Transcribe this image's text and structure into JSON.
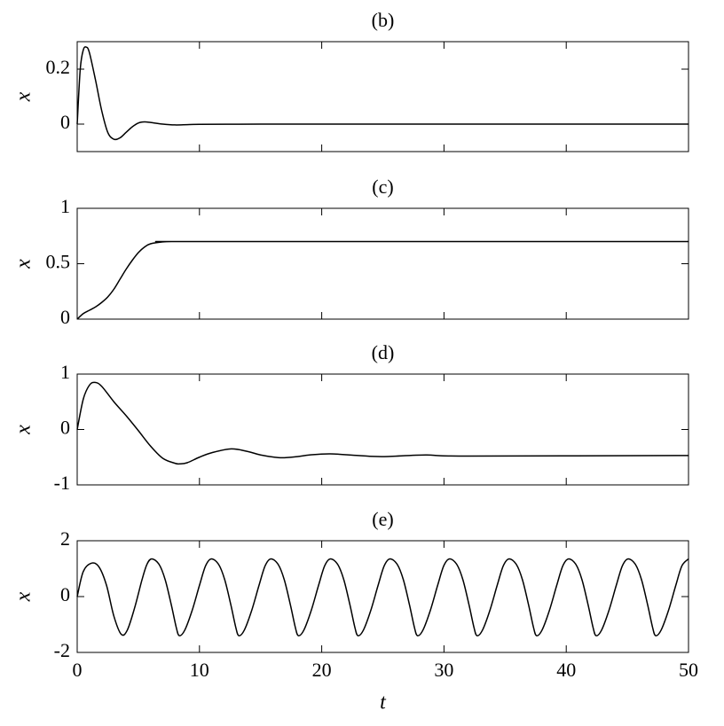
{
  "chart_data": [
    {
      "type": "line",
      "title": "(b)",
      "ylabel": "x",
      "color": "#000000",
      "xlim": [
        0,
        50
      ],
      "ylim": [
        -0.1,
        0.3
      ],
      "yticks": [
        0,
        0.2
      ],
      "x": [
        0,
        0.25,
        0.5,
        0.75,
        1,
        1.5,
        2,
        2.5,
        3,
        3.5,
        4,
        4.5,
        5,
        5.5,
        6,
        7,
        8,
        9,
        10,
        15,
        20,
        30,
        40,
        50
      ],
      "values": [
        0,
        0.2,
        0.27,
        0.28,
        0.26,
        0.16,
        0.05,
        -0.03,
        -0.055,
        -0.05,
        -0.03,
        -0.01,
        0.004,
        0.008,
        0.006,
        0,
        -0.003,
        -0.002,
        -0.001,
        0,
        0,
        0,
        0,
        0
      ]
    },
    {
      "type": "line",
      "title": "(c)",
      "ylabel": "x",
      "color": "#000000",
      "xlim": [
        0,
        50
      ],
      "ylim": [
        0,
        1
      ],
      "yticks": [
        0,
        0.5,
        1
      ],
      "x": [
        0,
        0.5,
        1,
        1.5,
        2,
        2.5,
        3,
        3.5,
        4,
        4.5,
        5,
        5.5,
        6,
        7,
        8,
        10,
        50
      ],
      "values": [
        0,
        0.05,
        0.08,
        0.11,
        0.15,
        0.2,
        0.27,
        0.36,
        0.45,
        0.53,
        0.6,
        0.65,
        0.68,
        0.697,
        0.7,
        0.7,
        0.7
      ]
    },
    {
      "type": "line",
      "title": "(d)",
      "ylabel": "x",
      "color": "#000000",
      "xlim": [
        0,
        50
      ],
      "ylim": [
        -1,
        1
      ],
      "yticks": [
        -1,
        0,
        1
      ],
      "x": [
        0,
        0.5,
        1,
        1.45,
        2,
        3,
        4,
        5,
        6,
        7,
        8,
        8.4,
        9,
        10,
        11,
        12.6,
        14,
        15,
        16.6,
        18,
        19,
        20.7,
        23,
        25,
        28.5,
        32,
        50
      ],
      "values": [
        0,
        0.55,
        0.8,
        0.85,
        0.78,
        0.5,
        0.25,
        -0.02,
        -0.3,
        -0.52,
        -0.61,
        -0.62,
        -0.6,
        -0.5,
        -0.42,
        -0.35,
        -0.4,
        -0.46,
        -0.51,
        -0.49,
        -0.46,
        -0.44,
        -0.47,
        -0.49,
        -0.46,
        -0.48,
        -0.47
      ]
    },
    {
      "type": "line",
      "title": "(e)",
      "ylabel": "x",
      "xlabel": "t",
      "color": "#000000",
      "xlim": [
        0,
        50
      ],
      "xticks": [
        0,
        10,
        20,
        30,
        40,
        50
      ],
      "ylim": [
        -2,
        2
      ],
      "yticks": [
        -2,
        0,
        2
      ],
      "x": [
        0,
        0.5,
        1.2,
        1.8,
        2.4,
        3,
        3.6,
        4.1,
        4.7,
        5.3,
        5.7,
        6.1,
        6.7,
        7.2,
        7.7,
        8.1,
        8.35,
        8.8,
        9.4,
        10,
        10.5,
        10.97,
        11.57,
        12.07,
        12.57,
        12.97,
        13.22,
        13.67,
        14.27,
        14.87,
        15.37,
        15.84,
        16.44,
        16.94,
        17.44,
        17.84,
        18.09,
        18.54,
        19.14,
        19.74,
        20.24,
        20.71,
        21.31,
        21.81,
        22.31,
        22.71,
        22.96,
        23.41,
        24.01,
        24.61,
        25.11,
        25.58,
        26.18,
        26.68,
        27.18,
        27.58,
        27.83,
        28.28,
        28.88,
        29.48,
        29.98,
        30.45,
        31.05,
        31.55,
        32.05,
        32.45,
        32.7,
        33.15,
        33.75,
        34.35,
        34.85,
        35.32,
        35.92,
        36.42,
        36.92,
        37.32,
        37.57,
        38.02,
        38.62,
        39.22,
        39.72,
        40.19,
        40.79,
        41.29,
        41.79,
        42.19,
        42.44,
        42.89,
        43.49,
        44.09,
        44.59,
        45.06,
        45.66,
        46.16,
        46.66,
        47.06,
        47.31,
        47.76,
        48.36,
        48.96,
        49.46,
        50
      ],
      "values": [
        0,
        0.9,
        1.2,
        1.05,
        0.4,
        -0.7,
        -1.35,
        -1.2,
        -0.4,
        0.6,
        1.15,
        1.35,
        1.15,
        0.6,
        -0.3,
        -1.1,
        -1.4,
        -1.2,
        -0.5,
        0.4,
        1.1,
        1.35,
        1.15,
        0.6,
        -0.3,
        -1.1,
        -1.4,
        -1.2,
        -0.5,
        0.4,
        1.1,
        1.35,
        1.15,
        0.6,
        -0.3,
        -1.1,
        -1.4,
        -1.2,
        -0.5,
        0.4,
        1.1,
        1.35,
        1.15,
        0.6,
        -0.3,
        -1.1,
        -1.4,
        -1.2,
        -0.5,
        0.4,
        1.1,
        1.35,
        1.15,
        0.6,
        -0.3,
        -1.1,
        -1.4,
        -1.2,
        -0.5,
        0.4,
        1.1,
        1.35,
        1.15,
        0.6,
        -0.3,
        -1.1,
        -1.4,
        -1.2,
        -0.5,
        0.4,
        1.1,
        1.35,
        1.15,
        0.6,
        -0.3,
        -1.1,
        -1.4,
        -1.2,
        -0.5,
        0.4,
        1.1,
        1.35,
        1.15,
        0.6,
        -0.3,
        -1.1,
        -1.4,
        -1.2,
        -0.5,
        0.4,
        1.1,
        1.35,
        1.15,
        0.6,
        -0.3,
        -1.1,
        -1.4,
        -1.2,
        -0.5,
        0.4,
        1.1,
        1.35
      ]
    }
  ]
}
